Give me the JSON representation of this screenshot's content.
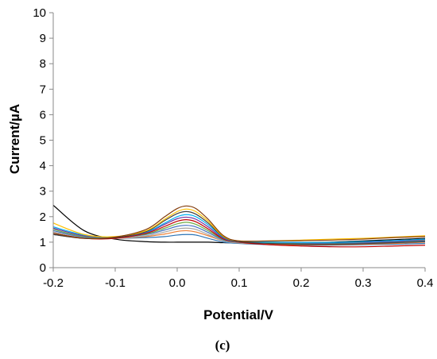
{
  "chart_data": {
    "type": "line",
    "title": "",
    "xlabel": "Potential/V",
    "ylabel": "Current/µA",
    "panel_label": "(c)",
    "xlim": [
      -0.2,
      0.4
    ],
    "ylim": [
      0,
      10
    ],
    "x_ticks": [
      "-0.2",
      "-0.1",
      "0.0",
      "0.1",
      "0.2",
      "0.3",
      "0.4"
    ],
    "y_ticks": [
      "0",
      "1",
      "2",
      "3",
      "4",
      "5",
      "6",
      "7",
      "8",
      "9",
      "10"
    ],
    "grid": false,
    "legend": "none",
    "x": [
      -0.2,
      -0.15,
      -0.1,
      -0.05,
      -0.02,
      0.0,
      0.015,
      0.03,
      0.05,
      0.075,
      0.1,
      0.15,
      0.2,
      0.25,
      0.3,
      0.35,
      0.4
    ],
    "series": [
      {
        "color": "#000000",
        "values": [
          2.45,
          1.45,
          1.12,
          1.02,
          1.0,
          1.0,
          1.0,
          1.0,
          1.0,
          0.98,
          0.97,
          0.97,
          0.98,
          1.0,
          1.05,
          1.1,
          1.15
        ]
      },
      {
        "color": "#2e75b6",
        "values": [
          1.3,
          1.15,
          1.15,
          1.18,
          1.22,
          1.28,
          1.3,
          1.28,
          1.15,
          1.0,
          0.95,
          0.9,
          0.88,
          0.88,
          0.9,
          0.92,
          0.95
        ]
      },
      {
        "color": "#ed7d31",
        "values": [
          1.35,
          1.15,
          1.15,
          1.22,
          1.32,
          1.42,
          1.45,
          1.4,
          1.25,
          1.05,
          0.97,
          0.92,
          0.9,
          0.9,
          0.92,
          0.95,
          1.0
        ]
      },
      {
        "color": "#a5a5a5",
        "values": [
          1.4,
          1.18,
          1.15,
          1.25,
          1.4,
          1.52,
          1.55,
          1.5,
          1.3,
          1.05,
          0.97,
          0.95,
          0.93,
          0.93,
          0.95,
          0.98,
          1.02
        ]
      },
      {
        "color": "#4472c4",
        "values": [
          1.45,
          1.2,
          1.18,
          1.3,
          1.48,
          1.62,
          1.66,
          1.6,
          1.38,
          1.08,
          1.0,
          0.97,
          0.95,
          0.95,
          0.97,
          1.0,
          1.05
        ]
      },
      {
        "color": "#70ad47",
        "values": [
          1.5,
          1.22,
          1.18,
          1.32,
          1.55,
          1.72,
          1.78,
          1.7,
          1.45,
          1.1,
          1.0,
          0.98,
          0.97,
          0.97,
          0.99,
          1.02,
          1.08
        ]
      },
      {
        "color": "#c00000",
        "values": [
          1.35,
          1.15,
          1.15,
          1.35,
          1.62,
          1.82,
          1.88,
          1.8,
          1.52,
          1.12,
          1.0,
          0.9,
          0.85,
          0.82,
          0.82,
          0.85,
          0.88
        ]
      },
      {
        "color": "#7030a0",
        "values": [
          1.55,
          1.25,
          1.2,
          1.38,
          1.7,
          1.92,
          1.98,
          1.9,
          1.6,
          1.15,
          1.02,
          1.0,
          0.98,
          0.98,
          1.0,
          1.03,
          1.1
        ]
      },
      {
        "color": "#00b0f0",
        "values": [
          1.6,
          1.28,
          1.2,
          1.4,
          1.75,
          2.0,
          2.08,
          2.0,
          1.68,
          1.18,
          1.02,
          1.0,
          0.99,
          0.99,
          1.02,
          1.06,
          1.12
        ]
      },
      {
        "color": "#404040",
        "values": [
          1.3,
          1.15,
          1.18,
          1.42,
          1.85,
          2.12,
          2.2,
          2.1,
          1.75,
          1.2,
          1.02,
          0.95,
          0.92,
          0.92,
          0.94,
          0.98,
          1.02
        ]
      },
      {
        "color": "#ffc000",
        "values": [
          1.75,
          1.3,
          1.22,
          1.45,
          1.9,
          2.2,
          2.3,
          2.2,
          1.82,
          1.22,
          1.05,
          1.05,
          1.08,
          1.12,
          1.15,
          1.2,
          1.25
        ]
      },
      {
        "color": "#833c0b",
        "values": [
          1.35,
          1.15,
          1.2,
          1.5,
          2.0,
          2.32,
          2.42,
          2.32,
          1.9,
          1.25,
          1.05,
          1.05,
          1.06,
          1.08,
          1.12,
          1.18,
          1.22
        ]
      }
    ]
  }
}
